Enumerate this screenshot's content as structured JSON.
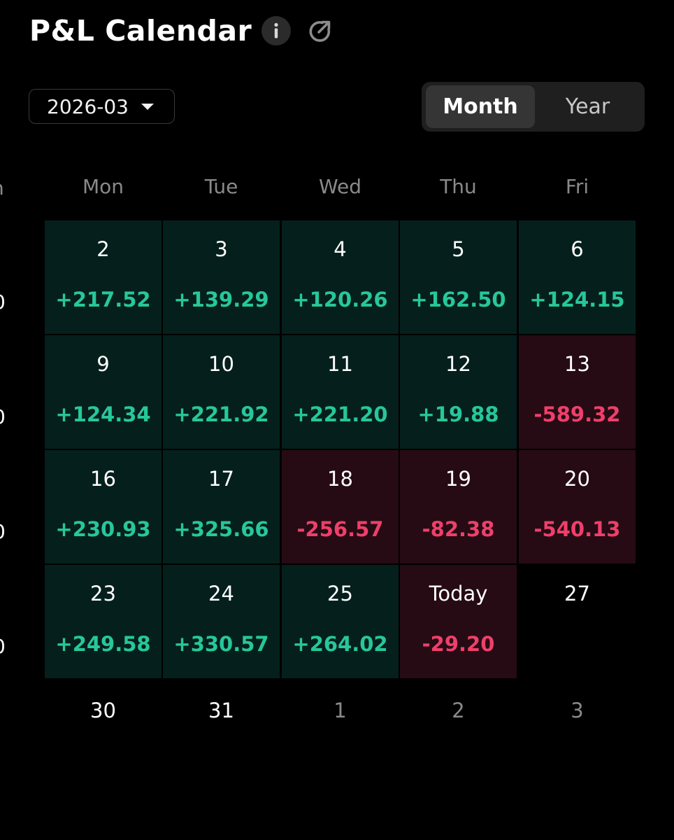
{
  "header": {
    "title": "P&L Calendar",
    "info_icon": "info-icon",
    "share_icon": "external-link-icon"
  },
  "controls": {
    "selected_month": "2026-03",
    "view_toggle": [
      {
        "label": "Month",
        "active": true
      },
      {
        "label": "Year",
        "active": false
      }
    ]
  },
  "edge_fragments": {
    "weekday_partial": "n",
    "week_total_partial": "0"
  },
  "weekdays": [
    "Mon",
    "Tue",
    "Wed",
    "Thu",
    "Fri"
  ],
  "weeks": [
    [
      {
        "day": "2",
        "pnl": "+217.52",
        "tone": "pos"
      },
      {
        "day": "3",
        "pnl": "+139.29",
        "tone": "pos"
      },
      {
        "day": "4",
        "pnl": "+120.26",
        "tone": "pos"
      },
      {
        "day": "5",
        "pnl": "+162.50",
        "tone": "pos"
      },
      {
        "day": "6",
        "pnl": "+124.15",
        "tone": "pos"
      }
    ],
    [
      {
        "day": "9",
        "pnl": "+124.34",
        "tone": "pos"
      },
      {
        "day": "10",
        "pnl": "+221.92",
        "tone": "pos"
      },
      {
        "day": "11",
        "pnl": "+221.20",
        "tone": "pos"
      },
      {
        "day": "12",
        "pnl": "+19.88",
        "tone": "pos"
      },
      {
        "day": "13",
        "pnl": "-589.32",
        "tone": "neg"
      }
    ],
    [
      {
        "day": "16",
        "pnl": "+230.93",
        "tone": "pos"
      },
      {
        "day": "17",
        "pnl": "+325.66",
        "tone": "pos"
      },
      {
        "day": "18",
        "pnl": "-256.57",
        "tone": "neg"
      },
      {
        "day": "19",
        "pnl": "-82.38",
        "tone": "neg"
      },
      {
        "day": "20",
        "pnl": "-540.13",
        "tone": "neg"
      }
    ],
    [
      {
        "day": "23",
        "pnl": "+249.58",
        "tone": "pos"
      },
      {
        "day": "24",
        "pnl": "+330.57",
        "tone": "pos"
      },
      {
        "day": "25",
        "pnl": "+264.02",
        "tone": "pos"
      },
      {
        "day": "Today",
        "pnl": "-29.20",
        "tone": "neg"
      },
      {
        "day": "27",
        "pnl": "",
        "tone": "none"
      }
    ]
  ],
  "last_row": [
    {
      "day": "30",
      "in_month": true
    },
    {
      "day": "31",
      "in_month": true
    },
    {
      "day": "1",
      "in_month": false
    },
    {
      "day": "2",
      "in_month": false
    },
    {
      "day": "3",
      "in_month": false
    }
  ],
  "colors": {
    "positive_text": "#27c79b",
    "negative_text": "#ef3f6b",
    "positive_cell": "#05201c",
    "negative_cell": "#260b14",
    "muted_text": "#8a8a8a"
  }
}
